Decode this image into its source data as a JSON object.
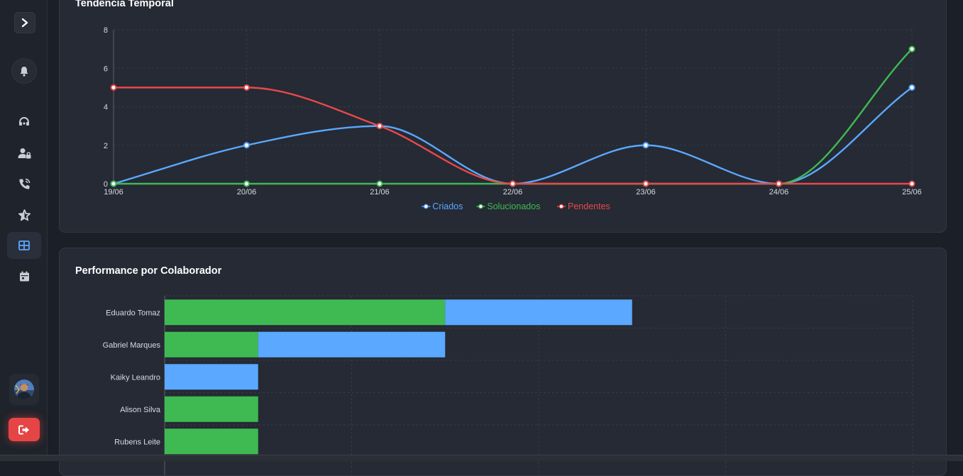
{
  "colors": {
    "criados": "#5aa8ff",
    "solucionados": "#3fba52",
    "pendentes": "#e8494a",
    "background": "#1b1f27",
    "card": "#252a34"
  },
  "sidebar": {
    "icons": [
      "chevron-right-icon",
      "bell-icon",
      "headset-icon",
      "user-lock-icon",
      "phone-icon",
      "star-icon",
      "grid-icon",
      "calendar-icon",
      "avatar",
      "logout-icon"
    ],
    "active_item": "grid-icon"
  },
  "trend": {
    "title": "Tendência Temporal",
    "legend": [
      "Criados",
      "Solucionados",
      "Pendentes"
    ]
  },
  "performance": {
    "title": "Performance por Colaborador"
  },
  "chart_data": [
    {
      "type": "line",
      "title": "Tendência Temporal",
      "x": [
        "19/06",
        "20/06",
        "21/06",
        "22/06",
        "23/06",
        "24/06",
        "25/06"
      ],
      "ylim": [
        0,
        8
      ],
      "yticks": [
        0,
        2,
        4,
        6,
        8
      ],
      "grid": true,
      "legend_position": "bottom",
      "series": [
        {
          "name": "Criados",
          "values": [
            0,
            2,
            3,
            0,
            2,
            0,
            5
          ]
        },
        {
          "name": "Solucionados",
          "values": [
            0,
            0,
            0,
            0,
            0,
            0,
            7
          ]
        },
        {
          "name": "Pendentes",
          "values": [
            5,
            5,
            3,
            0,
            0,
            0,
            0
          ]
        }
      ]
    },
    {
      "type": "bar",
      "orientation": "horizontal",
      "stacked": true,
      "title": "Performance por Colaborador",
      "categories": [
        "Eduardo Tomaz",
        "Gabriel Marques",
        "Kaiky Leandro",
        "Alison Silva",
        "Rubens Leite"
      ],
      "xlim": [
        0,
        8
      ],
      "grid": true,
      "series": [
        {
          "color": "#3fba52",
          "values": [
            3,
            1,
            0,
            1,
            1
          ]
        },
        {
          "color": "#5aa8ff",
          "values": [
            2,
            2,
            1,
            0,
            0
          ]
        }
      ]
    }
  ]
}
